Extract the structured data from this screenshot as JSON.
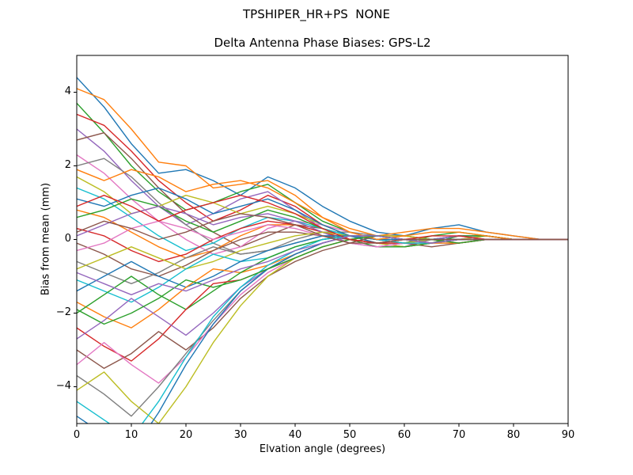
{
  "chart_data": {
    "type": "line",
    "suptitle": "TPSHIPER_HR+PS  NONE",
    "title": "Delta Antenna Phase Biases: GPS-L2",
    "xlabel": "Elvation angle (degrees)",
    "ylabel": "Bias from mean (mm)",
    "xlim": [
      0,
      90
    ],
    "ylim": [
      -5,
      5
    ],
    "xticks": [
      0,
      10,
      20,
      30,
      40,
      50,
      60,
      70,
      80,
      90
    ],
    "yticks": [
      -4,
      -2,
      0,
      2,
      4
    ],
    "grid": false,
    "legend": "none",
    "axis_color": "#000000",
    "line_width": 1.4,
    "x": [
      0,
      5,
      10,
      15,
      20,
      25,
      30,
      35,
      40,
      45,
      50,
      55,
      60,
      65,
      70,
      75,
      80,
      85,
      90
    ],
    "series": [
      {
        "color": "#1f77b4",
        "y": [
          4.4,
          3.6,
          2.6,
          1.8,
          1.9,
          1.6,
          1.2,
          1.7,
          1.4,
          0.9,
          0.5,
          0.2,
          0.1,
          0.3,
          0.4,
          0.2,
          0.1,
          0.0,
          0.0
        ]
      },
      {
        "color": "#ff7f0e",
        "y": [
          4.1,
          3.8,
          3.0,
          2.1,
          2.0,
          1.4,
          1.5,
          1.6,
          1.2,
          0.6,
          0.3,
          0.1,
          0.2,
          0.3,
          0.3,
          0.2,
          0.1,
          0.0,
          0.0
        ]
      },
      {
        "color": "#2ca02c",
        "y": [
          3.7,
          2.9,
          2.0,
          1.3,
          0.8,
          1.0,
          1.3,
          1.5,
          1.0,
          0.5,
          0.2,
          0.0,
          -0.1,
          0.1,
          0.2,
          0.1,
          0.0,
          0.0,
          0.0
        ]
      },
      {
        "color": "#d62728",
        "y": [
          3.4,
          3.1,
          2.4,
          1.6,
          1.0,
          0.5,
          0.8,
          1.2,
          0.9,
          0.4,
          0.1,
          -0.1,
          -0.2,
          -0.1,
          0.1,
          0.1,
          0.0,
          0.0,
          0.0
        ]
      },
      {
        "color": "#9467bd",
        "y": [
          3.0,
          2.4,
          1.6,
          0.9,
          0.4,
          0.7,
          1.1,
          1.3,
          0.8,
          0.3,
          0.0,
          -0.2,
          -0.2,
          0.0,
          0.1,
          0.1,
          0.0,
          0.0,
          0.0
        ]
      },
      {
        "color": "#8c564b",
        "y": [
          2.7,
          2.9,
          2.2,
          1.4,
          0.7,
          0.2,
          -0.2,
          0.1,
          0.4,
          0.3,
          0.1,
          0.0,
          -0.1,
          -0.2,
          -0.1,
          0.0,
          0.0,
          0.0,
          0.0
        ]
      },
      {
        "color": "#e377c2",
        "y": [
          2.3,
          1.8,
          1.1,
          0.5,
          0.0,
          -0.4,
          -0.2,
          0.3,
          0.5,
          0.4,
          0.2,
          0.0,
          -0.1,
          -0.1,
          0.0,
          0.1,
          0.0,
          0.0,
          0.0
        ]
      },
      {
        "color": "#7f7f7f",
        "y": [
          2.0,
          2.2,
          1.7,
          1.0,
          0.4,
          -0.1,
          -0.4,
          -0.3,
          0.0,
          0.2,
          0.2,
          0.1,
          0.0,
          -0.1,
          -0.1,
          0.0,
          0.0,
          0.0,
          0.0
        ]
      },
      {
        "color": "#bcbd22",
        "y": [
          1.7,
          1.3,
          0.7,
          0.9,
          1.2,
          1.0,
          0.7,
          0.9,
          0.7,
          0.4,
          0.1,
          -0.1,
          -0.2,
          -0.1,
          0.0,
          0.1,
          0.0,
          0.0,
          0.0
        ]
      },
      {
        "color": "#17becf",
        "y": [
          1.4,
          1.1,
          0.6,
          0.1,
          -0.3,
          -0.1,
          0.3,
          0.6,
          0.5,
          0.3,
          0.1,
          -0.1,
          -0.1,
          0.0,
          0.1,
          0.0,
          0.0,
          0.0,
          0.0
        ]
      },
      {
        "color": "#1f77b4",
        "y": [
          1.1,
          0.9,
          1.2,
          1.4,
          1.1,
          0.7,
          0.9,
          1.1,
          0.8,
          0.4,
          0.1,
          -0.1,
          -0.1,
          0.0,
          0.1,
          0.1,
          0.0,
          0.0,
          0.0
        ]
      },
      {
        "color": "#ff7f0e",
        "y": [
          0.8,
          0.6,
          0.2,
          -0.2,
          -0.5,
          -0.3,
          0.1,
          0.4,
          0.4,
          0.2,
          0.0,
          -0.1,
          -0.1,
          0.0,
          0.0,
          0.0,
          0.0,
          0.0,
          0.0
        ]
      },
      {
        "color": "#2ca02c",
        "y": [
          0.6,
          0.8,
          1.1,
          0.9,
          0.5,
          0.2,
          0.5,
          0.8,
          0.6,
          0.3,
          0.0,
          -0.2,
          -0.2,
          -0.1,
          0.1,
          0.1,
          0.0,
          0.0,
          0.0
        ]
      },
      {
        "color": "#d62728",
        "y": [
          0.3,
          0.1,
          -0.3,
          -0.6,
          -0.4,
          0.0,
          0.3,
          0.5,
          0.4,
          0.2,
          0.0,
          -0.1,
          -0.1,
          0.0,
          0.0,
          0.0,
          0.0,
          0.0,
          0.0
        ]
      },
      {
        "color": "#9467bd",
        "y": [
          0.1,
          0.4,
          0.7,
          0.9,
          0.7,
          0.4,
          0.6,
          0.7,
          0.5,
          0.2,
          -0.1,
          -0.2,
          -0.1,
          0.0,
          0.1,
          0.0,
          0.0,
          0.0,
          0.0
        ]
      },
      {
        "color": "#8c564b",
        "y": [
          -0.1,
          -0.4,
          -0.8,
          -1.0,
          -0.7,
          -0.3,
          0.0,
          0.2,
          0.2,
          0.1,
          0.0,
          -0.1,
          0.0,
          0.0,
          0.0,
          0.0,
          0.0,
          0.0,
          0.0
        ]
      },
      {
        "color": "#e377c2",
        "y": [
          -0.3,
          -0.1,
          0.3,
          0.5,
          0.3,
          0.0,
          0.2,
          0.4,
          0.3,
          0.1,
          -0.1,
          -0.2,
          -0.1,
          0.0,
          0.0,
          0.0,
          0.0,
          0.0,
          0.0
        ]
      },
      {
        "color": "#7f7f7f",
        "y": [
          -0.6,
          -0.9,
          -1.2,
          -0.9,
          -0.5,
          -0.2,
          -0.4,
          -0.3,
          -0.1,
          0.1,
          0.1,
          0.0,
          -0.1,
          -0.1,
          0.0,
          0.0,
          0.0,
          0.0,
          0.0
        ]
      },
      {
        "color": "#bcbd22",
        "y": [
          -0.8,
          -0.5,
          -0.2,
          -0.5,
          -0.8,
          -0.6,
          -0.3,
          -0.1,
          0.1,
          0.2,
          0.1,
          0.0,
          -0.1,
          0.0,
          0.0,
          0.0,
          0.0,
          0.0,
          0.0
        ]
      },
      {
        "color": "#17becf",
        "y": [
          -1.1,
          -1.4,
          -1.7,
          -1.3,
          -0.8,
          -0.4,
          -0.6,
          -0.5,
          -0.2,
          0.0,
          0.1,
          0.0,
          -0.1,
          -0.1,
          0.0,
          0.0,
          0.0,
          0.0,
          0.0
        ]
      },
      {
        "color": "#1f77b4",
        "y": [
          -1.4,
          -1.0,
          -0.6,
          -1.0,
          -1.3,
          -1.0,
          -0.6,
          -0.3,
          -0.1,
          0.1,
          0.1,
          0.0,
          0.0,
          -0.1,
          0.0,
          0.0,
          0.0,
          0.0,
          0.0
        ]
      },
      {
        "color": "#ff7f0e",
        "y": [
          -1.7,
          -2.1,
          -2.4,
          -1.9,
          -1.3,
          -0.8,
          -0.9,
          -0.7,
          -0.4,
          -0.1,
          0.1,
          0.1,
          0.0,
          -0.1,
          -0.1,
          0.0,
          0.0,
          0.0,
          0.0
        ]
      },
      {
        "color": "#2ca02c",
        "y": [
          -2.0,
          -1.5,
          -1.0,
          -1.5,
          -1.9,
          -1.4,
          -0.9,
          -0.5,
          -0.2,
          0.0,
          0.1,
          0.1,
          0.0,
          0.0,
          0.0,
          0.0,
          0.0,
          0.0,
          0.0
        ]
      },
      {
        "color": "#d62728",
        "y": [
          -2.4,
          -2.9,
          -3.3,
          -2.7,
          -1.9,
          -1.2,
          -1.1,
          -0.8,
          -0.5,
          -0.2,
          0.0,
          0.1,
          0.1,
          0.0,
          -0.1,
          0.0,
          0.0,
          0.0,
          0.0
        ]
      },
      {
        "color": "#9467bd",
        "y": [
          -2.7,
          -2.2,
          -1.6,
          -2.1,
          -2.6,
          -2.0,
          -1.3,
          -0.8,
          -0.4,
          -0.1,
          0.1,
          0.1,
          0.0,
          0.0,
          0.0,
          0.0,
          0.0,
          0.0,
          0.0
        ]
      },
      {
        "color": "#8c564b",
        "y": [
          -3.0,
          -3.5,
          -3.1,
          -2.5,
          -3.0,
          -2.4,
          -1.6,
          -1.0,
          -0.6,
          -0.3,
          -0.1,
          0.1,
          0.1,
          0.0,
          0.0,
          0.0,
          0.0,
          0.0,
          0.0
        ]
      },
      {
        "color": "#e377c2",
        "y": [
          -3.4,
          -2.8,
          -3.4,
          -3.9,
          -3.2,
          -2.3,
          -1.5,
          -0.9,
          -0.5,
          -0.2,
          0.0,
          0.1,
          0.0,
          0.0,
          0.0,
          0.0,
          0.0,
          0.0,
          0.0
        ]
      },
      {
        "color": "#7f7f7f",
        "y": [
          -3.7,
          -4.2,
          -4.8,
          -4.0,
          -3.1,
          -2.2,
          -1.4,
          -0.8,
          -0.4,
          -0.1,
          0.1,
          0.1,
          0.0,
          0.0,
          0.0,
          0.0,
          0.0,
          0.0,
          0.0
        ]
      },
      {
        "color": "#bcbd22",
        "y": [
          -4.1,
          -3.6,
          -4.4,
          -5.0,
          -4.0,
          -2.8,
          -1.8,
          -1.0,
          -0.5,
          -0.2,
          0.0,
          0.1,
          0.1,
          0.0,
          0.0,
          0.0,
          0.0,
          0.0,
          0.0
        ]
      },
      {
        "color": "#17becf",
        "y": [
          -4.4,
          -4.9,
          -5.4,
          -4.4,
          -3.2,
          -2.1,
          -1.3,
          -0.7,
          -0.3,
          0.0,
          0.1,
          0.1,
          0.0,
          0.0,
          0.0,
          0.0,
          0.0,
          0.0,
          0.0
        ]
      },
      {
        "color": "#1f77b4",
        "y": [
          -4.8,
          -5.3,
          -5.8,
          -4.7,
          -3.4,
          -2.3,
          -1.4,
          -0.8,
          -0.4,
          -0.1,
          0.1,
          0.1,
          0.0,
          0.0,
          0.0,
          0.0,
          0.0,
          0.0,
          0.0
        ]
      },
      {
        "color": "#ff7f0e",
        "y": [
          1.9,
          1.6,
          1.9,
          1.7,
          1.3,
          1.5,
          1.6,
          1.4,
          1.0,
          0.6,
          0.2,
          0.0,
          0.1,
          0.2,
          0.2,
          0.1,
          0.0,
          0.0,
          0.0
        ]
      },
      {
        "color": "#2ca02c",
        "y": [
          -1.9,
          -2.3,
          -2.0,
          -1.6,
          -1.1,
          -1.3,
          -1.1,
          -0.8,
          -0.5,
          -0.2,
          0.0,
          0.1,
          0.0,
          0.0,
          -0.1,
          0.0,
          0.0,
          0.0,
          0.0
        ]
      },
      {
        "color": "#d62728",
        "y": [
          0.9,
          1.2,
          0.9,
          0.5,
          0.8,
          1.0,
          1.2,
          1.0,
          0.7,
          0.3,
          0.0,
          -0.1,
          0.0,
          0.1,
          0.1,
          0.0,
          0.0,
          0.0,
          0.0
        ]
      },
      {
        "color": "#9467bd",
        "y": [
          -0.9,
          -1.2,
          -1.5,
          -1.2,
          -1.4,
          -1.1,
          -0.8,
          -0.6,
          -0.3,
          -0.1,
          0.1,
          0.1,
          0.0,
          -0.1,
          0.0,
          0.0,
          0.0,
          0.0,
          0.0
        ]
      },
      {
        "color": "#8c564b",
        "y": [
          0.2,
          0.5,
          0.3,
          0.0,
          0.2,
          0.5,
          0.7,
          0.6,
          0.4,
          0.1,
          -0.1,
          -0.1,
          0.0,
          0.0,
          0.0,
          0.0,
          0.0,
          0.0,
          0.0
        ]
      }
    ]
  }
}
